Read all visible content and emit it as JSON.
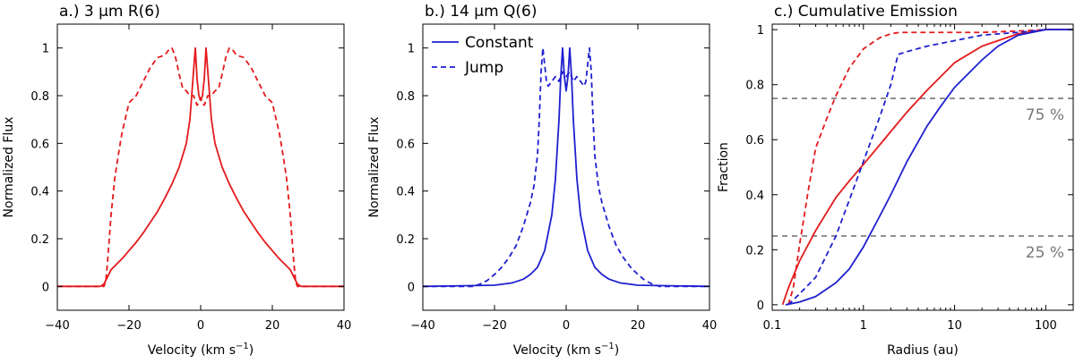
{
  "colors": {
    "red": "#e41a1c",
    "blue": "#1f1fd0",
    "reference": "#777777"
  },
  "chart_data": [
    {
      "type": "line",
      "title": "a.) 3 μm R(6)",
      "xlabel": "Velocity (km s",
      "xlabel_sup": "−1",
      "xlabel_tail": ")",
      "ylabel": "Normalized Flux",
      "xlim": [
        -40,
        40
      ],
      "ylim": [
        -0.1,
        1.1
      ],
      "xticks": [
        -40,
        -20,
        0,
        20,
        40
      ],
      "xtick_labels": [
        "−40",
        "−20",
        "0",
        "20",
        "40"
      ],
      "yticks": [
        0,
        0.2,
        0.4,
        0.6,
        0.8,
        1
      ],
      "ytick_labels": [
        "0",
        "0.2",
        "0.4",
        "0.6",
        "0.8",
        "1"
      ],
      "series": [
        {
          "style": "solid",
          "color": "#e41a1c",
          "x": [
            -40,
            -28,
            -27,
            -26,
            -25,
            -24,
            -22,
            -20,
            -18,
            -16,
            -14,
            -12,
            -10,
            -8,
            -6,
            -4,
            -3,
            -2,
            -1.5,
            -1,
            -0.5,
            0,
            0.5,
            1,
            1.5,
            2,
            3,
            4,
            6,
            8,
            10,
            12,
            14,
            16,
            18,
            20,
            22,
            24,
            25,
            26,
            27,
            28,
            40
          ],
          "y": [
            0,
            0,
            0.01,
            0.04,
            0.07,
            0.085,
            0.115,
            0.15,
            0.185,
            0.225,
            0.27,
            0.315,
            0.37,
            0.43,
            0.5,
            0.6,
            0.7,
            0.9,
            1.0,
            0.87,
            0.8,
            0.78,
            0.8,
            0.87,
            1.0,
            0.9,
            0.7,
            0.6,
            0.5,
            0.43,
            0.37,
            0.315,
            0.27,
            0.225,
            0.185,
            0.15,
            0.115,
            0.085,
            0.07,
            0.04,
            0.01,
            0,
            0
          ]
        },
        {
          "style": "dashed",
          "color": "#e41a1c",
          "x": [
            -40,
            -27,
            -26.5,
            -26,
            -25,
            -24,
            -23,
            -22,
            -20,
            -18,
            -16,
            -14,
            -12,
            -10,
            -9,
            -8,
            -7,
            -6,
            -5,
            -4,
            -3,
            -2,
            -1.5,
            -1,
            -0.5,
            0,
            0.5,
            1,
            1.5,
            2,
            3,
            4,
            5,
            6,
            7,
            8,
            9,
            10,
            12,
            14,
            16,
            18,
            20,
            22,
            23,
            24,
            25,
            26,
            26.5,
            27,
            40
          ],
          "y": [
            0,
            0,
            0.02,
            0.1,
            0.3,
            0.45,
            0.55,
            0.64,
            0.77,
            0.8,
            0.86,
            0.92,
            0.96,
            0.97,
            0.99,
            1.0,
            0.96,
            0.89,
            0.83,
            0.82,
            0.8,
            0.8,
            0.78,
            0.76,
            0.77,
            0.79,
            0.77,
            0.76,
            0.78,
            0.8,
            0.8,
            0.82,
            0.83,
            0.89,
            0.96,
            1.0,
            0.99,
            0.97,
            0.96,
            0.92,
            0.86,
            0.8,
            0.77,
            0.64,
            0.55,
            0.45,
            0.3,
            0.1,
            0.02,
            0,
            0
          ]
        }
      ]
    },
    {
      "type": "line",
      "title": "b.) 14 μm Q(6)",
      "xlabel": "Velocity (km s",
      "xlabel_sup": "−1",
      "xlabel_tail": ")",
      "ylabel": "Normalized Flux",
      "xlim": [
        -40,
        40
      ],
      "ylim": [
        -0.1,
        1.1
      ],
      "xticks": [
        -40,
        -20,
        0,
        20,
        40
      ],
      "xtick_labels": [
        "−40",
        "−20",
        "0",
        "20",
        "40"
      ],
      "yticks": [
        0,
        0.2,
        0.4,
        0.6,
        0.8,
        1
      ],
      "ytick_labels": [
        "0",
        "0.2",
        "0.4",
        "0.6",
        "0.8",
        "1"
      ],
      "legend": {
        "position": "top-left",
        "entries": [
          {
            "label": "Constant",
            "style": "solid"
          },
          {
            "label": "Jump",
            "style": "dashed"
          }
        ]
      },
      "series": [
        {
          "name": "Constant",
          "style": "solid",
          "color": "#1f1fd0",
          "x": [
            -40,
            -20,
            -15,
            -12,
            -10,
            -8,
            -6,
            -4,
            -3,
            -2,
            -1.5,
            -1,
            -0.5,
            0,
            0.5,
            1,
            1.5,
            2,
            3,
            4,
            6,
            8,
            10,
            12,
            15,
            20,
            40
          ],
          "y": [
            0,
            0.005,
            0.015,
            0.03,
            0.05,
            0.08,
            0.15,
            0.3,
            0.45,
            0.7,
            0.88,
            1.0,
            0.88,
            0.82,
            0.88,
            1.0,
            0.88,
            0.7,
            0.45,
            0.3,
            0.15,
            0.08,
            0.05,
            0.03,
            0.015,
            0.005,
            0
          ]
        },
        {
          "name": "Jump",
          "style": "dashed",
          "color": "#1f1fd0",
          "x": [
            -40,
            -26,
            -24,
            -22,
            -20,
            -18,
            -16,
            -14,
            -12,
            -10,
            -9,
            -8,
            -7.5,
            -7,
            -6.5,
            -6,
            -5.5,
            -5,
            -4,
            -3,
            -2,
            -1,
            0,
            1,
            2,
            3,
            4,
            5,
            5.5,
            6,
            6.5,
            7,
            7.5,
            8,
            9,
            10,
            12,
            14,
            16,
            18,
            20,
            22,
            24,
            26,
            40
          ],
          "y": [
            0,
            0,
            0.01,
            0.025,
            0.05,
            0.08,
            0.12,
            0.17,
            0.25,
            0.35,
            0.42,
            0.55,
            0.7,
            0.9,
            1.0,
            0.93,
            0.86,
            0.84,
            0.86,
            0.88,
            0.86,
            0.9,
            0.88,
            0.9,
            0.86,
            0.88,
            0.86,
            0.84,
            0.86,
            0.93,
            1.0,
            0.9,
            0.7,
            0.55,
            0.42,
            0.35,
            0.25,
            0.17,
            0.12,
            0.08,
            0.05,
            0.025,
            0.01,
            0,
            0
          ]
        }
      ]
    },
    {
      "type": "line",
      "title": "c.) Cumulative Emission",
      "xlabel": "Radius (au)",
      "ylabel": "Fraction",
      "xscale": "log",
      "xlim": [
        0.1,
        200
      ],
      "ylim": [
        -0.02,
        1.02
      ],
      "xticks": [
        0.1,
        1,
        10,
        100
      ],
      "xtick_labels": [
        "0.1",
        "1",
        "10",
        "100"
      ],
      "yticks": [
        0,
        0.2,
        0.4,
        0.6,
        0.8,
        1
      ],
      "ytick_labels": [
        "0",
        "0.2",
        "0.4",
        "0.6",
        "0.8",
        "1"
      ],
      "reference_lines": [
        {
          "y": 0.75,
          "label": "75 %"
        },
        {
          "y": 0.25,
          "label": "25 %"
        }
      ],
      "series": [
        {
          "style": "solid",
          "color": "#e41a1c",
          "x": [
            0.13,
            0.15,
            0.2,
            0.3,
            0.5,
            0.7,
            1,
            1.5,
            2,
            3,
            5,
            10,
            20,
            50,
            100,
            200
          ],
          "y": [
            0,
            0.06,
            0.16,
            0.27,
            0.39,
            0.45,
            0.51,
            0.58,
            0.63,
            0.7,
            0.78,
            0.88,
            0.94,
            0.985,
            1.0,
            1.0
          ],
          "start_x": 0.13
        },
        {
          "style": "dashed",
          "color": "#e41a1c",
          "x": [
            0.15,
            0.17,
            0.2,
            0.25,
            0.3,
            0.4,
            0.5,
            0.7,
            1,
            1.5,
            2,
            2.5,
            3,
            5,
            10,
            20,
            50,
            100,
            200
          ],
          "y": [
            0,
            0.06,
            0.22,
            0.42,
            0.57,
            0.68,
            0.76,
            0.86,
            0.93,
            0.97,
            0.985,
            0.99,
            0.99,
            0.99,
            0.99,
            0.99,
            0.995,
            1.0,
            1.0
          ]
        },
        {
          "style": "solid",
          "color": "#1f1fd0",
          "x": [
            0.14,
            0.2,
            0.3,
            0.5,
            0.7,
            1,
            1.5,
            2,
            3,
            5,
            7,
            10,
            20,
            30,
            50,
            100,
            200
          ],
          "y": [
            0,
            0.01,
            0.03,
            0.08,
            0.13,
            0.21,
            0.32,
            0.4,
            0.52,
            0.65,
            0.72,
            0.79,
            0.89,
            0.94,
            0.98,
            1.0,
            1.0
          ]
        },
        {
          "style": "dashed",
          "color": "#1f1fd0",
          "x": [
            0.15,
            0.2,
            0.3,
            0.5,
            0.7,
            1,
            1.5,
            2,
            2.4,
            3,
            5,
            10,
            20,
            50,
            100,
            200
          ],
          "y": [
            0,
            0.04,
            0.1,
            0.25,
            0.38,
            0.52,
            0.68,
            0.8,
            0.91,
            0.92,
            0.94,
            0.96,
            0.98,
            0.99,
            1.0,
            1.0
          ]
        }
      ]
    }
  ]
}
